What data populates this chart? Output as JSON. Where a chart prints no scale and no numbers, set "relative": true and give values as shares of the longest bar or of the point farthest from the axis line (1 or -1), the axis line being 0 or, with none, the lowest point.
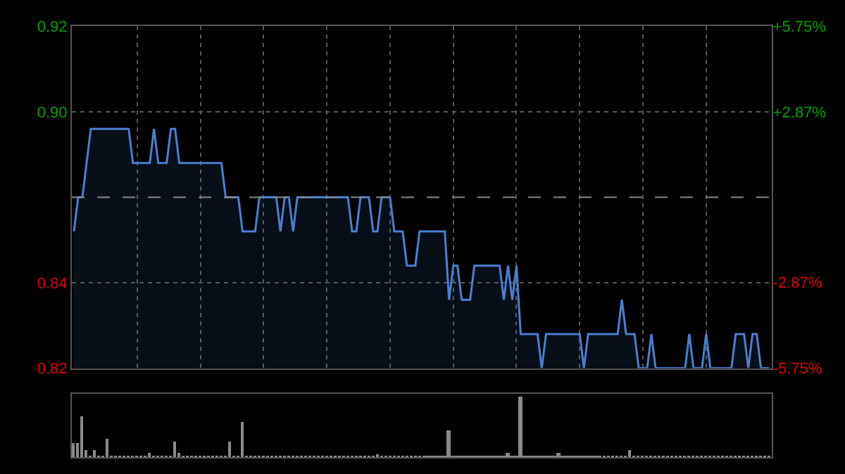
{
  "chart_data": [
    {
      "type": "area",
      "categories": [
        null,
        null,
        null,
        null,
        null,
        null,
        null,
        null,
        null,
        null,
        null,
        null,
        null,
        null,
        null,
        null,
        null,
        null,
        null,
        null,
        null,
        null,
        null,
        null,
        null,
        null,
        null,
        null,
        null,
        null,
        null,
        null,
        null,
        null,
        null,
        null,
        null,
        null,
        null,
        null,
        null,
        null,
        null,
        null,
        null,
        null,
        null,
        null,
        null,
        null,
        null,
        null,
        null,
        null,
        null,
        null,
        null,
        null,
        null,
        null,
        null,
        null,
        null,
        null,
        null,
        null,
        null,
        null,
        null,
        null,
        null,
        null,
        null,
        null,
        null,
        null,
        null,
        null,
        null,
        null,
        null,
        null,
        null,
        null,
        null,
        null,
        null,
        null,
        null,
        null,
        null,
        null,
        null,
        null,
        null,
        null,
        null,
        null,
        null,
        null,
        null,
        null,
        null,
        null,
        null,
        null,
        null,
        null,
        null,
        null,
        null,
        null,
        null,
        null,
        null,
        null,
        null,
        null,
        null,
        null,
        null,
        null,
        null,
        null,
        null,
        null,
        null,
        null,
        null,
        null,
        null,
        null,
        null,
        null,
        null,
        null,
        null,
        null,
        null,
        null,
        null,
        null,
        null,
        null,
        null,
        null,
        null,
        null,
        null,
        null,
        null,
        null,
        null,
        null,
        null,
        null,
        null,
        null,
        null,
        null,
        null,
        null,
        null,
        null,
        null,
        null
      ],
      "series": [
        {
          "color": "#4a7fd0",
          "values": [
            0.86,
            0.87,
            0.87,
            0.88,
            0.89,
            0.89,
            0.89,
            0.89,
            0.89,
            0.89,
            0.89,
            0.89,
            0.89,
            0.89,
            0.88,
            0.88,
            0.88,
            0.88,
            0.88,
            0.89,
            0.88,
            0.88,
            0.88,
            0.89,
            0.89,
            0.88,
            0.88,
            0.88,
            0.88,
            0.88,
            0.88,
            0.88,
            0.88,
            0.88,
            0.88,
            0.88,
            0.87,
            0.87,
            0.87,
            0.87,
            0.86,
            0.86,
            0.86,
            0.86,
            0.87,
            0.87,
            0.87,
            0.87,
            0.87,
            0.86,
            0.87,
            0.87,
            0.86,
            0.87,
            0.87,
            0.87,
            0.87,
            0.87,
            0.87,
            0.87,
            0.87,
            0.87,
            0.87,
            0.87,
            0.87,
            0.87,
            0.86,
            0.86,
            0.87,
            0.87,
            0.87,
            0.86,
            0.86,
            0.87,
            0.87,
            0.87,
            0.86,
            0.86,
            0.86,
            0.85,
            0.85,
            0.85,
            0.86,
            0.86,
            0.86,
            0.86,
            0.86,
            0.86,
            0.86,
            0.84,
            0.85,
            0.85,
            0.84,
            0.84,
            0.84,
            0.85,
            0.85,
            0.85,
            0.85,
            0.85,
            0.85,
            0.85,
            0.84,
            0.85,
            0.84,
            0.85,
            0.83,
            0.83,
            0.83,
            0.83,
            0.83,
            0.82,
            0.83,
            0.83,
            0.83,
            0.83,
            0.83,
            0.83,
            0.83,
            0.83,
            0.83,
            0.82,
            0.83,
            0.83,
            0.83,
            0.83,
            0.83,
            0.83,
            0.83,
            0.83,
            0.84,
            0.83,
            0.83,
            0.83,
            0.82,
            0.82,
            0.82,
            0.83,
            0.82,
            0.82,
            0.82,
            0.82,
            0.82,
            0.82,
            0.82,
            0.82,
            0.83,
            0.82,
            0.82,
            0.82,
            0.83,
            0.82,
            0.82,
            0.82,
            0.82,
            0.82,
            0.82,
            0.83,
            0.83,
            0.83,
            0.82,
            0.83,
            0.83,
            0.82,
            0.82,
            0.82
          ]
        }
      ],
      "ylim": [
        0.82,
        0.92
      ],
      "yticks": [
        0.82,
        {
          "value": 0.845,
          "label": "0.84"
        },
        {
          "value": 0.895,
          "label": "0.90"
        },
        0.92
      ],
      "y2lim": [
        -5.75,
        5.75
      ],
      "y2ticks": [
        {
          "value": -5.75,
          "label": "-5.75%"
        },
        {
          "value": -2.87,
          "label": "-2.87%"
        },
        {
          "value": 2.87,
          "label": "+2.87%"
        },
        {
          "value": 5.75,
          "label": "+5.75%"
        }
      ],
      "ref_lines": [
        {
          "axis": "y",
          "value": 0.87,
          "line_style": "dashed"
        }
      ],
      "grid": true,
      "tick_labels": "y"
    },
    {
      "type": "bar",
      "relative": true,
      "color": "#8a8a8a",
      "categories": [
        null,
        null,
        null,
        null,
        null,
        null,
        null,
        null,
        null,
        null,
        null,
        null,
        null,
        null,
        null,
        null,
        null,
        null,
        null,
        null,
        null,
        null,
        null,
        null,
        null,
        null,
        null,
        null,
        null,
        null,
        null,
        null,
        null,
        null,
        null,
        null,
        null,
        null,
        null,
        null,
        null,
        null,
        null,
        null,
        null,
        null,
        null,
        null,
        null,
        null,
        null,
        null,
        null,
        null,
        null,
        null,
        null,
        null,
        null,
        null,
        null,
        null,
        null,
        null,
        null,
        null,
        null,
        null,
        null,
        null,
        null,
        null,
        null,
        null,
        null,
        null,
        null,
        null,
        null,
        null,
        null,
        null,
        null,
        null,
        null,
        null,
        null,
        null,
        null,
        null,
        null,
        null,
        null,
        null,
        null,
        null,
        null,
        null,
        null,
        null,
        null,
        null,
        null,
        null,
        null,
        null,
        null,
        null,
        null,
        null,
        null,
        null,
        null,
        null,
        null,
        null,
        null,
        null,
        null,
        null,
        null,
        null,
        null,
        null,
        null,
        null,
        null,
        null,
        null,
        null,
        null,
        null,
        null,
        null,
        null,
        null,
        null,
        null,
        null,
        null,
        null,
        null,
        null,
        null,
        null,
        null,
        null,
        null,
        null,
        null,
        null,
        null,
        null,
        null,
        null,
        null,
        null,
        null,
        null,
        null,
        null,
        null,
        null,
        null,
        null,
        null
      ],
      "values": [
        0.24,
        0.23,
        0.68,
        0.13,
        0.02,
        0.11,
        0.02,
        0.02,
        0.31,
        0.02,
        0.02,
        0.02,
        0.02,
        0.02,
        0.02,
        0.02,
        0.02,
        0.02,
        0.07,
        0.02,
        0.02,
        0.02,
        0.02,
        0.02,
        0.27,
        0.08,
        0.02,
        0.02,
        0.02,
        0.02,
        0.02,
        0.02,
        0.02,
        0.02,
        0.02,
        0.02,
        0.02,
        0.25,
        0.02,
        0.02,
        0.59,
        0.02,
        0.02,
        0.02,
        0.02,
        0.02,
        0.02,
        0.02,
        0.02,
        0.02,
        0.02,
        0.02,
        0.02,
        0.02,
        0.02,
        0.02,
        0.02,
        0.02,
        0.02,
        0.02,
        0.02,
        0.02,
        0.02,
        0.02,
        0.02,
        0.02,
        0.02,
        0.02,
        0.02,
        0.02,
        0.02,
        0.02,
        0.05,
        0.02,
        0.02,
        0.02,
        0.02,
        0.02,
        0.02,
        0.02,
        0.02,
        0.02,
        0.02,
        0.02,
        0.02,
        0.02,
        0.02,
        0.02,
        0.02,
        0.45,
        0.02,
        0.02,
        0.02,
        0.02,
        0.02,
        0.02,
        0.02,
        0.02,
        0.02,
        0.02,
        0.02,
        0.02,
        0.02,
        0.07,
        0.02,
        0.02,
        1,
        0.02,
        0.02,
        0.02,
        0.02,
        0.02,
        0.02,
        0.02,
        0.02,
        0.07,
        0.02,
        0.02,
        0.02,
        0.02,
        0.02,
        0.02,
        0.02,
        0.02,
        0.02,
        0.02,
        0.02,
        0.02,
        0.02,
        0.02,
        0.02,
        0.02,
        0.12,
        0.02,
        0.02,
        0.02,
        0.02,
        0.02,
        0.02,
        0.02,
        0.02,
        0.02,
        0.02,
        0.02,
        0.02,
        0.02,
        0.02,
        0.02,
        0.02,
        0.02,
        0.02,
        0.02,
        0.02,
        0.02,
        0.02,
        0.02,
        0.02,
        0.02,
        0.02,
        0.02,
        0.02,
        0.02,
        0.02,
        0.02,
        0.02,
        0.02
      ],
      "tick_labels": false
    }
  ]
}
